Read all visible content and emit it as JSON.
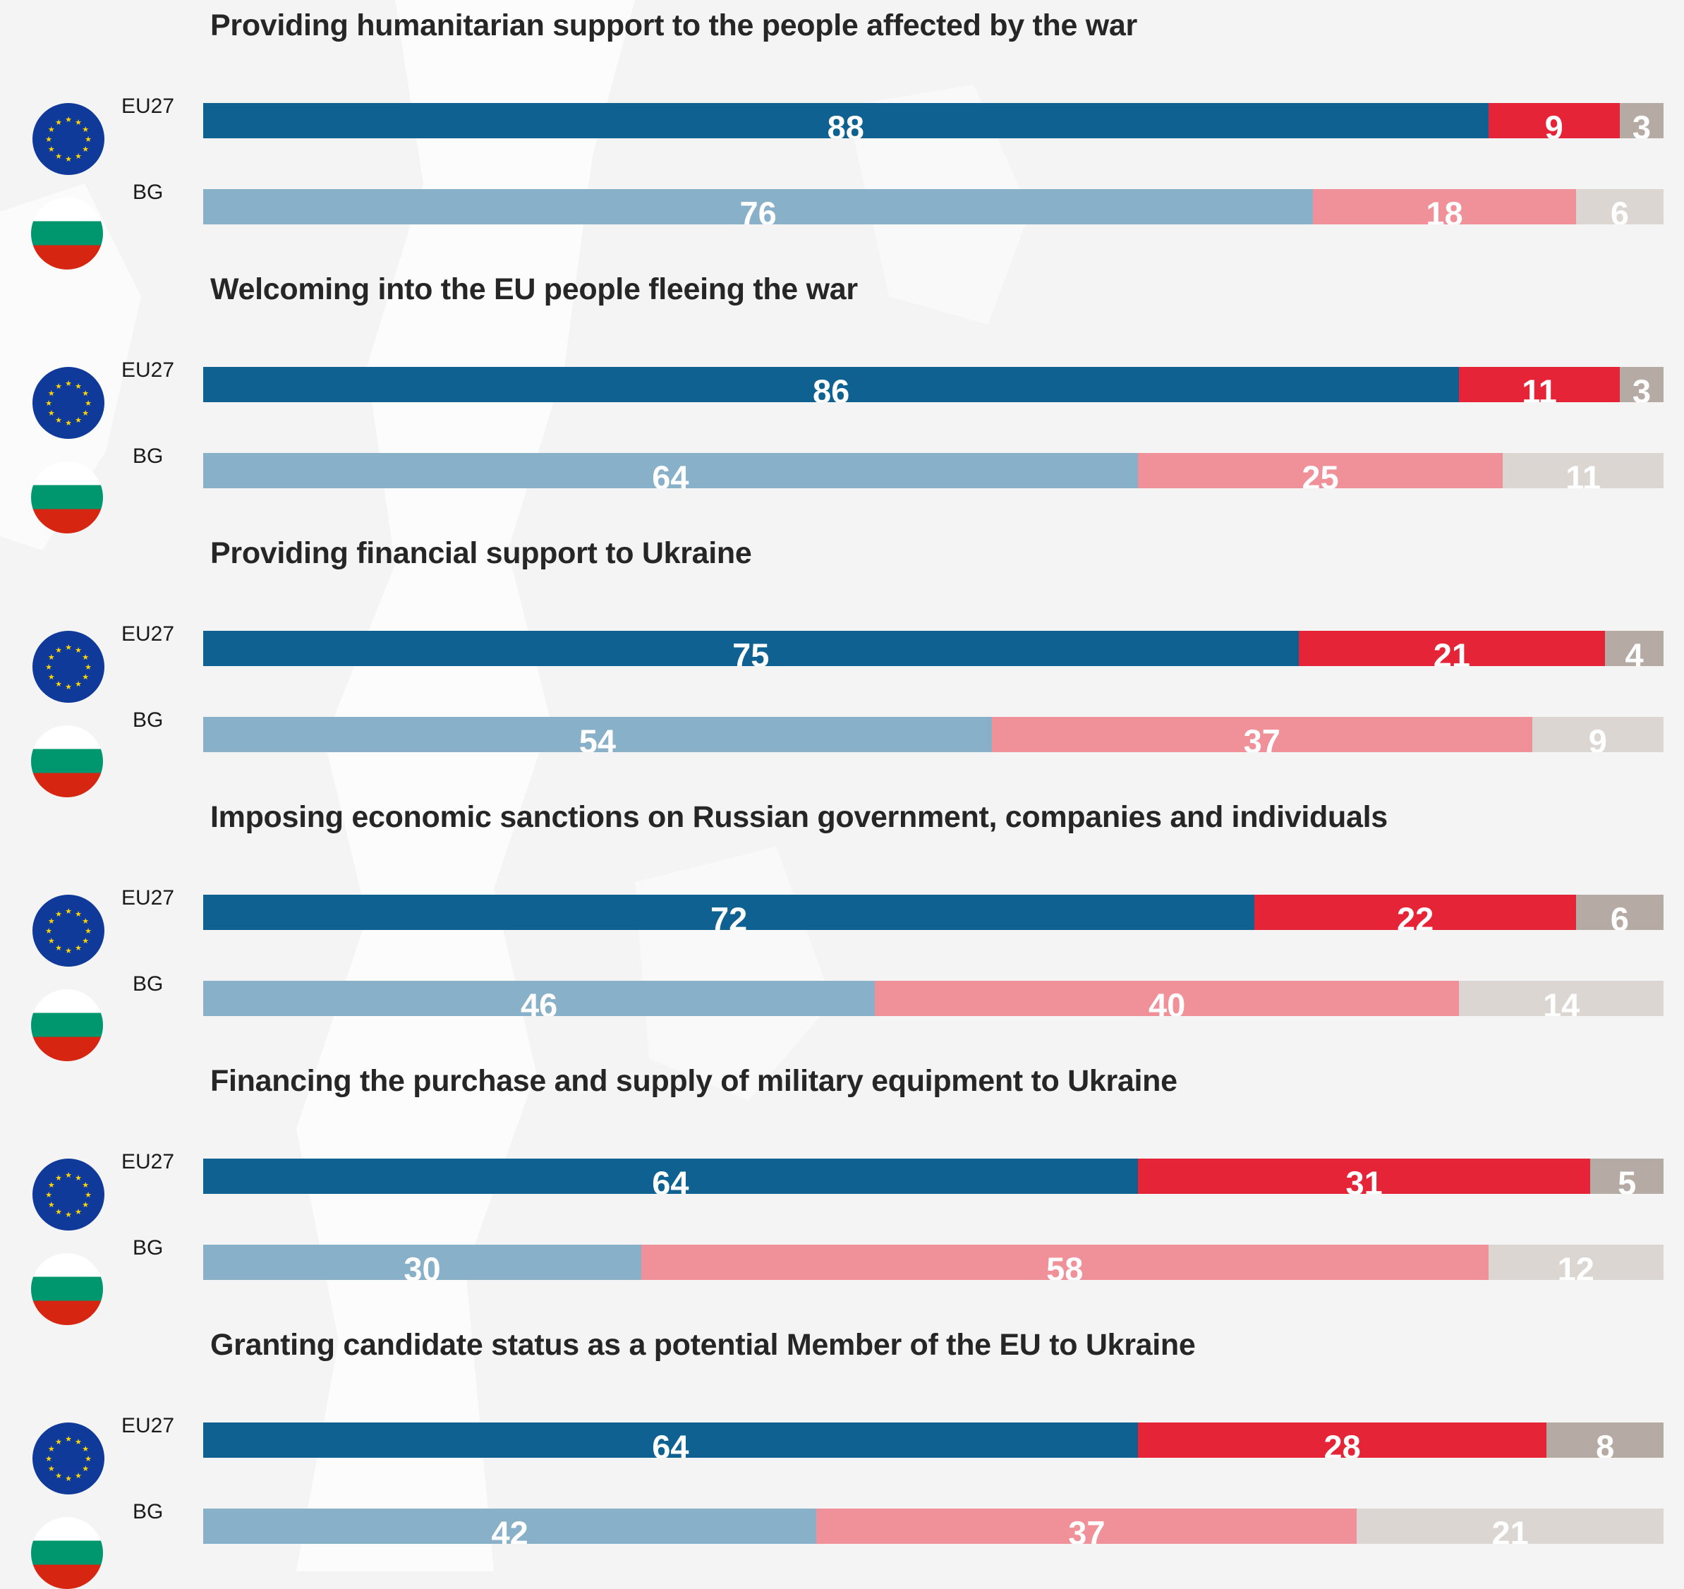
{
  "colors": {
    "eu_for": "#0e6191",
    "eu_against": "#e52437",
    "eu_dk": "#b6aba4",
    "bg_for": "#88b0c8",
    "bg_against": "#f09199",
    "bg_dk": "#dcd6d2"
  },
  "chart_data": {
    "type": "bar",
    "orientation": "horizontal",
    "stacked": true,
    "unit": "%",
    "blocks": [
      {
        "title": "Providing humanitarian support to the people affected by the war",
        "rows": [
          {
            "label": "EU27",
            "values": [
              88,
              9,
              3
            ]
          },
          {
            "label": "BG",
            "values": [
              76,
              18,
              6
            ]
          }
        ]
      },
      {
        "title": "Welcoming into the EU people fleeing the war",
        "rows": [
          {
            "label": "EU27",
            "values": [
              86,
              11,
              3
            ]
          },
          {
            "label": "BG",
            "values": [
              64,
              25,
              11
            ]
          }
        ]
      },
      {
        "title": "Providing financial support to Ukraine",
        "rows": [
          {
            "label": "EU27",
            "values": [
              75,
              21,
              4
            ]
          },
          {
            "label": "BG",
            "values": [
              54,
              37,
              9
            ]
          }
        ]
      },
      {
        "title": "Imposing economic sanctions on Russian government, companies and individuals",
        "rows": [
          {
            "label": "EU27",
            "values": [
              72,
              22,
              6
            ]
          },
          {
            "label": "BG",
            "values": [
              46,
              40,
              14
            ]
          }
        ]
      },
      {
        "title": "Financing the purchase and supply of military equipment to Ukraine",
        "rows": [
          {
            "label": "EU27",
            "values": [
              64,
              31,
              5
            ]
          },
          {
            "label": "BG",
            "values": [
              30,
              58,
              12
            ]
          }
        ]
      },
      {
        "title": "Granting candidate status as a potential Member of the EU to Ukraine",
        "rows": [
          {
            "label": "EU27",
            "values": [
              64,
              28,
              8
            ]
          },
          {
            "label": "BG",
            "values": [
              42,
              37,
              21
            ]
          }
        ]
      }
    ]
  }
}
